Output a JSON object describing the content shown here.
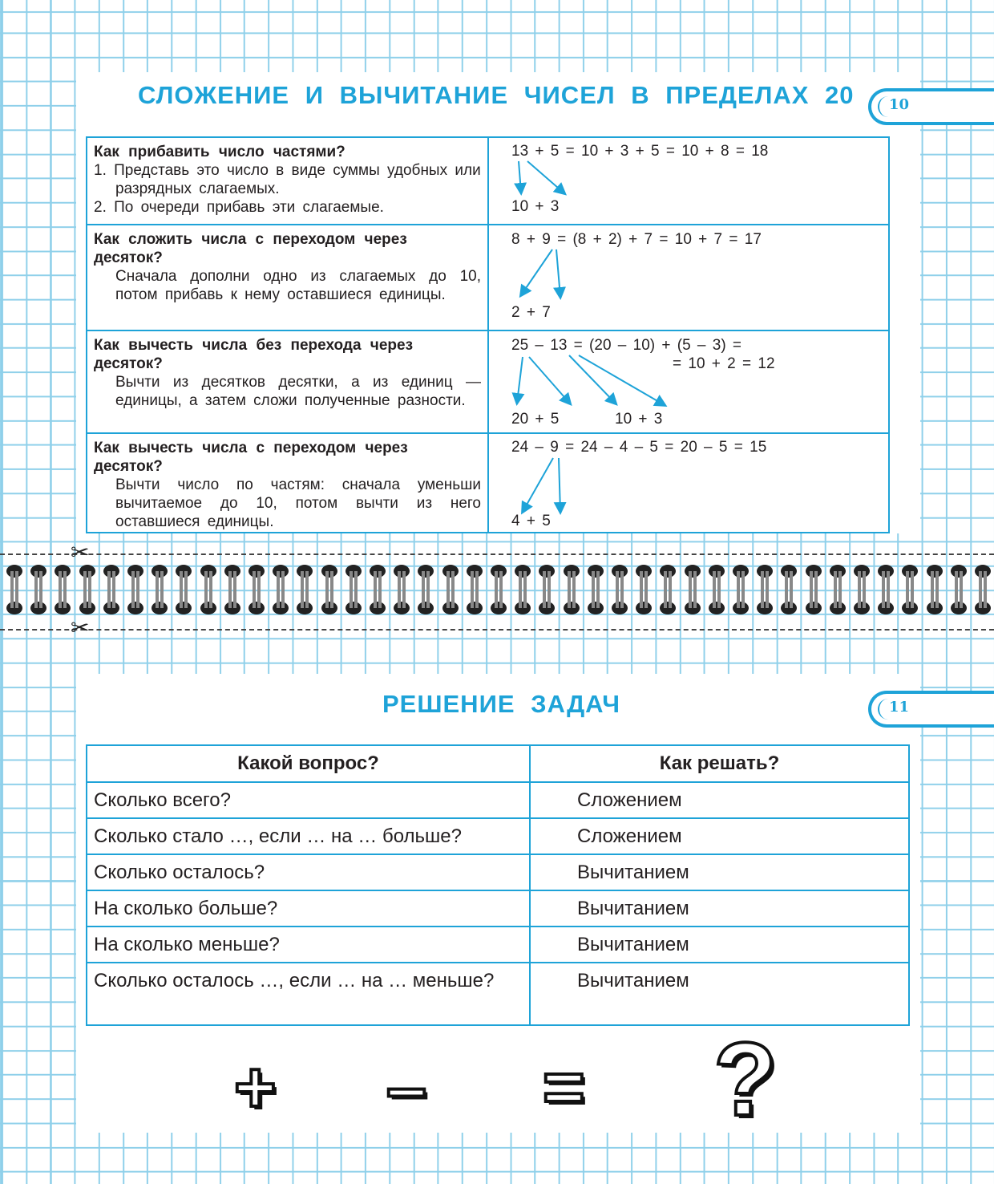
{
  "page1": {
    "title": "СЛОЖЕНИЕ И ВЫЧИТАНИЕ ЧИСЕЛ В ПРЕДЕЛАХ 20",
    "page_number": "10",
    "rows": [
      {
        "question": "Как прибавить число частями?",
        "steps": [
          "1. Представь это число в виде суммы удобных или разрядных слагаемых.",
          "2. По очереди прибавь эти слагаемые."
        ],
        "eq": [
          "13 + 5 = 10 + 3 + 5 = 10 + 8 = 18",
          "10 + 3"
        ]
      },
      {
        "question": "Как сложить числа с переходом через десяток?",
        "text": "Сначала дополни одно из слагаемых до 10, потом прибавь к нему оставшиеся единицы.",
        "eq": [
          "8 + 9 = (8 + 2) + 7 = 10 + 7 = 17",
          "2 + 7"
        ]
      },
      {
        "question": "Как вычесть числа без перехода через десяток?",
        "text": "Вычти из десятков десятки, а из единиц — единицы, а затем сложи полученные разности.",
        "eq": [
          "25 – 13 = (20 – 10) + (5 – 3) =",
          "= 10 + 2 = 12",
          "20 + 5",
          "10 + 3"
        ]
      },
      {
        "question": "Как вычесть числа с переходом через десяток?",
        "text": "Вычти число по частям: сначала уменьши вычитаемое до 10, потом вычти из него оставшиеся единицы.",
        "eq": [
          "24 – 9 = 24 – 4 – 5 = 20 – 5 = 15",
          "4 + 5"
        ]
      }
    ]
  },
  "page2": {
    "title": "РЕШЕНИЕ ЗАДАЧ",
    "page_number": "11",
    "headers": [
      "Какой вопрос?",
      "Как решать?"
    ],
    "rows": [
      [
        "Сколько всего?",
        "Сложением"
      ],
      [
        "Сколько стало …, если … на … больше?",
        "Сложением"
      ],
      [
        "Сколько осталось?",
        "Вычитанием"
      ],
      [
        "На сколько больше?",
        "Вычитанием"
      ],
      [
        "На сколько меньше?",
        "Вычитанием"
      ],
      [
        "Сколько осталось …, если … на … меньше?",
        "Вычитанием"
      ]
    ]
  },
  "symbols": [
    "+",
    "–",
    "=",
    "?"
  ],
  "icons": {
    "scissors": "scissors-icon",
    "spiral": "spiral-binding"
  },
  "colors": {
    "accent": "#1ea3d8",
    "grid": "#8fd0ea"
  }
}
